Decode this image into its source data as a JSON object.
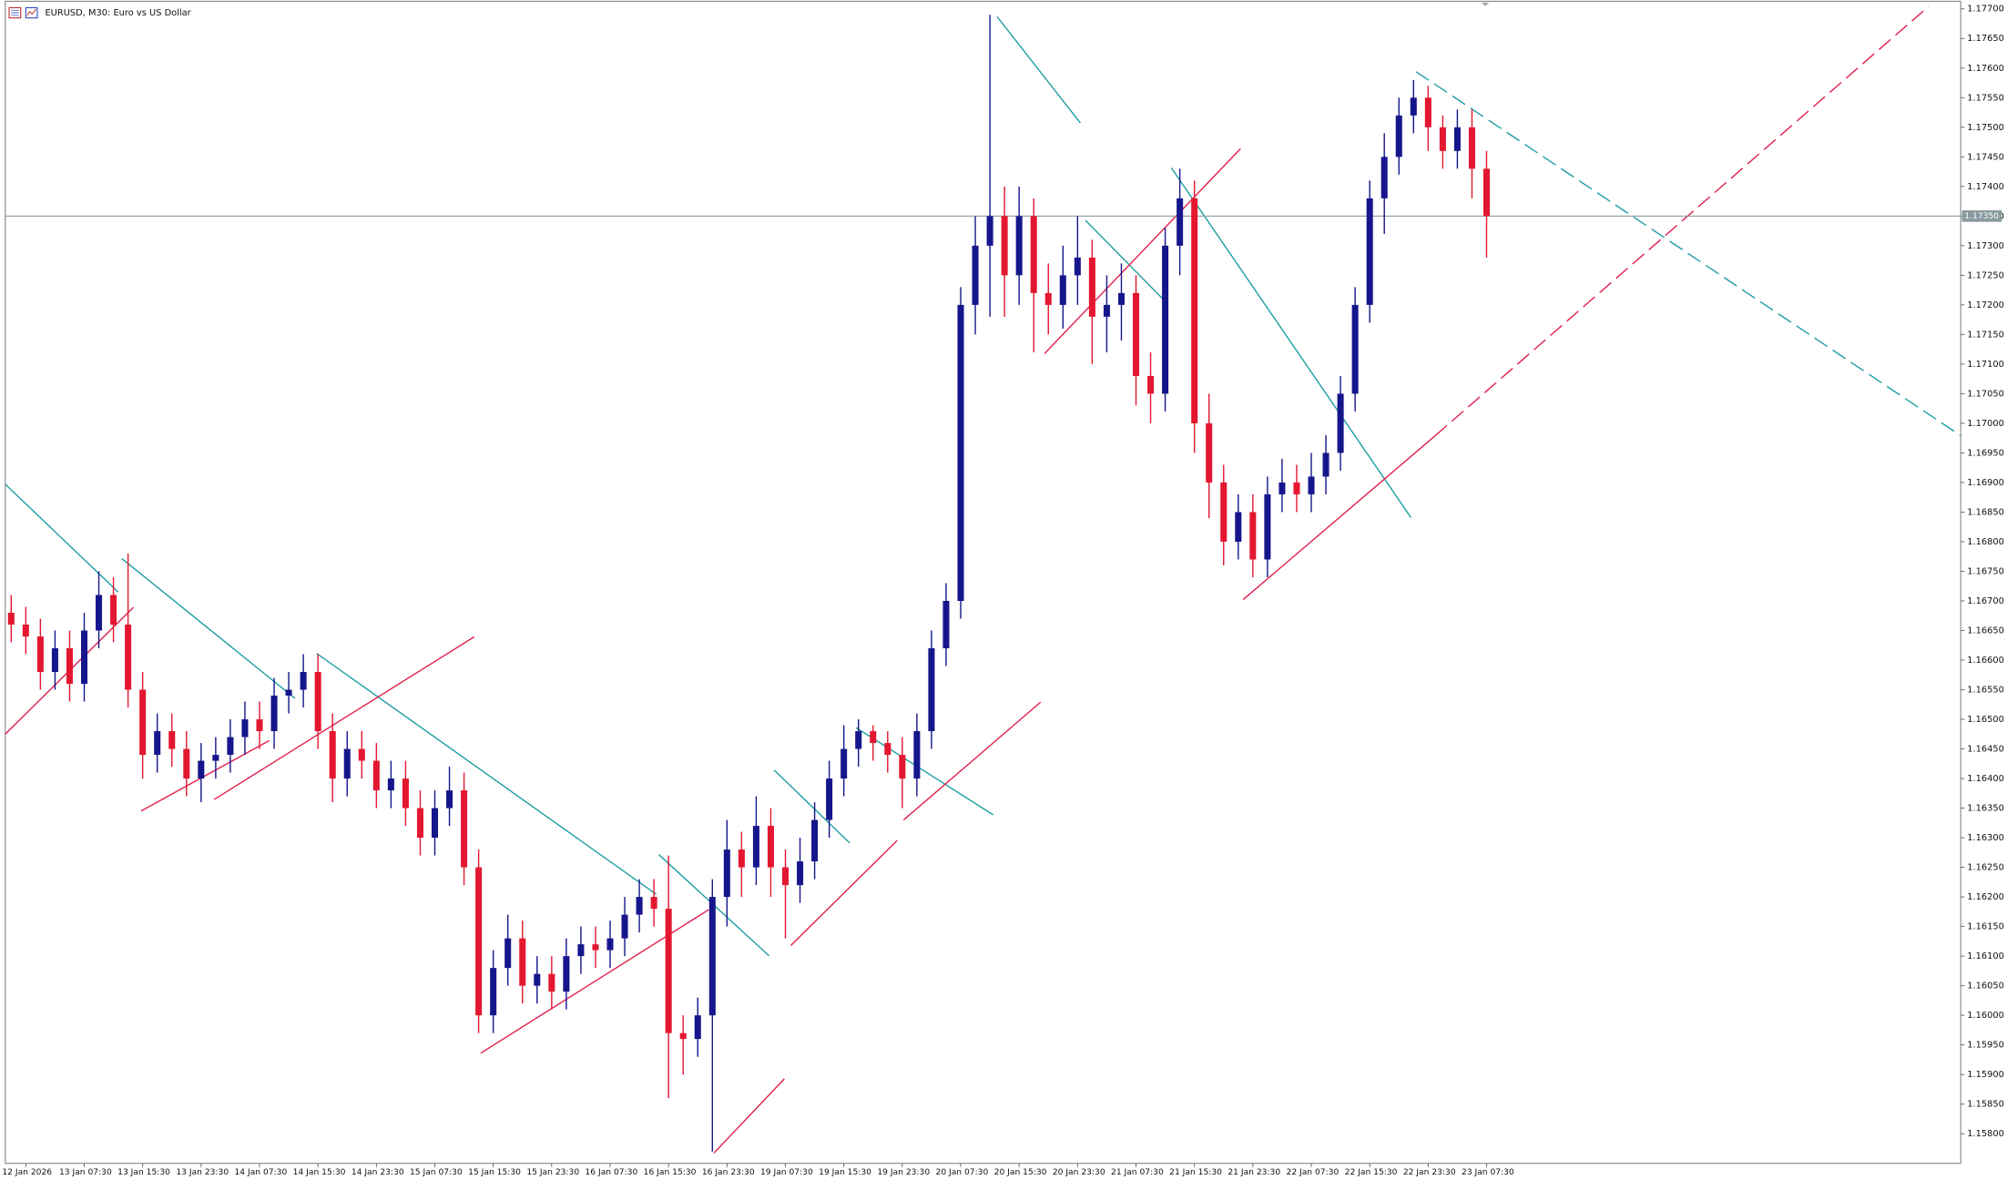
{
  "chart_data": {
    "type": "candlestick",
    "title": "EURUSD, M30:  Euro vs US Dollar",
    "categories": [
      null,
      "12 Jan 2026",
      null,
      null,
      null,
      "13 Jan 07:30",
      null,
      null,
      null,
      "13 Jan 15:30",
      null,
      null,
      null,
      "13 Jan 23:30",
      null,
      null,
      null,
      "14 Jan 07:30",
      null,
      null,
      null,
      "14 Jan 15:30",
      null,
      null,
      null,
      "14 Jan 23:30",
      null,
      null,
      null,
      "15 Jan 07:30",
      null,
      null,
      null,
      "15 Jan 15:30",
      null,
      null,
      null,
      "15 Jan 23:30",
      null,
      null,
      null,
      "16 Jan 07:30",
      null,
      null,
      null,
      "16 Jan 15:30",
      null,
      null,
      null,
      "16 Jan 23:30",
      null,
      null,
      null,
      "19 Jan 07:30",
      null,
      null,
      null,
      "19 Jan 15:30",
      null,
      null,
      null,
      "19 Jan 23:30",
      null,
      null,
      null,
      "20 Jan 07:30",
      null,
      null,
      null,
      "20 Jan 15:30",
      null,
      null,
      null,
      "20 Jan 23:30",
      null,
      null,
      null,
      "21 Jan 07:30",
      null,
      null,
      null,
      "21 Jan 15:30",
      null,
      null,
      null,
      "21 Jan 23:30",
      null,
      null,
      null,
      "22 Jan 07:30",
      null,
      null,
      null,
      "22 Jan 15:30",
      null,
      null,
      null,
      "22 Jan 23:30",
      null,
      null,
      null,
      "23 Jan 07:30"
    ],
    "open": [
      1.1668,
      1.1666,
      1.1664,
      1.1658,
      1.1662,
      1.1656,
      1.1665,
      1.1671,
      1.1666,
      1.1655,
      1.1644,
      1.1648,
      1.1645,
      1.164,
      1.1643,
      1.1644,
      1.1647,
      1.165,
      1.1648,
      1.1654,
      1.1655,
      1.1658,
      1.1648,
      1.164,
      1.1645,
      1.1643,
      1.1638,
      1.164,
      1.1635,
      1.163,
      1.1635,
      1.1638,
      1.1625,
      1.16,
      1.1608,
      1.1613,
      1.1605,
      1.1607,
      1.1604,
      1.161,
      1.1612,
      1.1611,
      1.1613,
      1.1617,
      1.162,
      1.1618,
      1.1597,
      1.1596,
      1.16,
      1.162,
      1.1628,
      1.1625,
      1.1632,
      1.1625,
      1.1622,
      1.1626,
      1.1633,
      1.164,
      1.1645,
      1.1648,
      1.1646,
      1.1644,
      1.164,
      1.1648,
      1.1662,
      1.167,
      1.172,
      1.173,
      1.1735,
      1.1725,
      1.1735,
      1.1722,
      1.172,
      1.1725,
      1.1728,
      1.1718,
      1.172,
      1.1722,
      1.1708,
      1.1705,
      1.173,
      1.1738,
      1.17,
      1.169,
      1.168,
      1.1685,
      1.1677,
      1.1688,
      1.169,
      1.1688,
      1.1691,
      1.1695,
      1.1705,
      1.172,
      1.1738,
      1.1745,
      1.1752,
      1.1755,
      1.175,
      1.1746,
      1.175,
      1.1743
    ],
    "high": [
      1.1671,
      1.1669,
      1.1667,
      1.1665,
      1.1665,
      1.1668,
      1.1675,
      1.1674,
      1.1678,
      1.1658,
      1.1651,
      1.1651,
      1.1648,
      1.1646,
      1.1647,
      1.165,
      1.1653,
      1.1653,
      1.1657,
      1.1658,
      1.1661,
      1.1661,
      1.1651,
      1.1648,
      1.1648,
      1.1646,
      1.1643,
      1.1643,
      1.1638,
      1.1638,
      1.1642,
      1.1641,
      1.1628,
      1.1611,
      1.1617,
      1.1616,
      1.161,
      1.161,
      1.1613,
      1.1615,
      1.1615,
      1.1616,
      1.162,
      1.1623,
      1.1623,
      1.1627,
      1.16,
      1.1603,
      1.1623,
      1.1633,
      1.1631,
      1.1637,
      1.1635,
      1.1628,
      1.163,
      1.1636,
      1.1643,
      1.1649,
      1.165,
      1.1649,
      1.1648,
      1.1647,
      1.1651,
      1.1665,
      1.1673,
      1.1723,
      1.1735,
      1.1769,
      1.174,
      1.174,
      1.1738,
      1.1727,
      1.173,
      1.1735,
      1.1731,
      1.1725,
      1.1727,
      1.1725,
      1.1712,
      1.1733,
      1.1743,
      1.1741,
      1.1705,
      1.1693,
      1.1688,
      1.1688,
      1.1691,
      1.1694,
      1.1693,
      1.1695,
      1.1698,
      1.1708,
      1.1723,
      1.1741,
      1.1749,
      1.1755,
      1.1758,
      1.1757,
      1.1752,
      1.1753,
      1.1753,
      1.1746
    ],
    "low": [
      1.1663,
      1.1661,
      1.1655,
      1.1655,
      1.1653,
      1.1653,
      1.1662,
      1.1663,
      1.1652,
      1.164,
      1.1641,
      1.1642,
      1.1637,
      1.1636,
      1.164,
      1.1641,
      1.1644,
      1.1645,
      1.1645,
      1.1651,
      1.1652,
      1.1645,
      1.1636,
      1.1637,
      1.164,
      1.1635,
      1.1635,
      1.1632,
      1.1627,
      1.1627,
      1.1632,
      1.1622,
      1.1597,
      1.1597,
      1.1605,
      1.1602,
      1.1602,
      1.1601,
      1.1601,
      1.1607,
      1.1608,
      1.1608,
      1.161,
      1.1614,
      1.1615,
      1.1586,
      1.159,
      1.1593,
      1.1577,
      1.1615,
      1.162,
      1.1622,
      1.162,
      1.1613,
      1.1619,
      1.1623,
      1.163,
      1.1637,
      1.1642,
      1.1643,
      1.1641,
      1.1635,
      1.1637,
      1.1645,
      1.1659,
      1.1667,
      1.1715,
      1.1718,
      1.1718,
      1.172,
      1.1712,
      1.1715,
      1.1716,
      1.172,
      1.171,
      1.1712,
      1.1714,
      1.1703,
      1.17,
      1.1702,
      1.1725,
      1.1695,
      1.1684,
      1.1676,
      1.1677,
      1.1674,
      1.1674,
      1.1685,
      1.1685,
      1.1685,
      1.1688,
      1.1692,
      1.1702,
      1.1717,
      1.1732,
      1.1742,
      1.1749,
      1.1746,
      1.1743,
      1.1743,
      1.1738,
      1.1728
    ],
    "close": [
      1.1666,
      1.1664,
      1.1658,
      1.1662,
      1.1656,
      1.1665,
      1.1671,
      1.1666,
      1.1655,
      1.1644,
      1.1648,
      1.1645,
      1.164,
      1.1643,
      1.1644,
      1.1647,
      1.165,
      1.1648,
      1.1654,
      1.1655,
      1.1658,
      1.1648,
      1.164,
      1.1645,
      1.1643,
      1.1638,
      1.164,
      1.1635,
      1.163,
      1.1635,
      1.1638,
      1.1625,
      1.16,
      1.1608,
      1.1613,
      1.1605,
      1.1607,
      1.1604,
      1.161,
      1.1612,
      1.1611,
      1.1613,
      1.1617,
      1.162,
      1.1618,
      1.1597,
      1.1596,
      1.16,
      1.162,
      1.1628,
      1.1625,
      1.1632,
      1.1625,
      1.1622,
      1.1626,
      1.1633,
      1.164,
      1.1645,
      1.1648,
      1.1646,
      1.1644,
      1.164,
      1.1648,
      1.1662,
      1.167,
      1.172,
      1.173,
      1.1735,
      1.1725,
      1.1735,
      1.1722,
      1.172,
      1.1725,
      1.1728,
      1.1718,
      1.172,
      1.1722,
      1.1708,
      1.1705,
      1.173,
      1.1738,
      1.17,
      1.169,
      1.168,
      1.1685,
      1.1677,
      1.1688,
      1.169,
      1.1688,
      1.1691,
      1.1695,
      1.1705,
      1.172,
      1.1738,
      1.1745,
      1.1752,
      1.1755,
      1.175,
      1.1746,
      1.175,
      1.1743,
      1.1735
    ],
    "up_color": "#16168c",
    "down_color": "#e3172f",
    "ylim": [
      1.1575,
      1.17715
    ],
    "yticks": [
      {
        "value": 1.158,
        "label": "1.15800"
      },
      {
        "value": 1.1585,
        "label": "1.15850"
      },
      {
        "value": 1.159,
        "label": "1.15900"
      },
      {
        "value": 1.1595,
        "label": "1.15950"
      },
      {
        "value": 1.16,
        "label": "1.16000"
      },
      {
        "value": 1.1605,
        "label": "1.16050"
      },
      {
        "value": 1.161,
        "label": "1.16100"
      },
      {
        "value": 1.1615,
        "label": "1.16150"
      },
      {
        "value": 1.162,
        "label": "1.16200"
      },
      {
        "value": 1.1625,
        "label": "1.16250"
      },
      {
        "value": 1.163,
        "label": "1.16300"
      },
      {
        "value": 1.1635,
        "label": "1.16350"
      },
      {
        "value": 1.164,
        "label": "1.16400"
      },
      {
        "value": 1.1645,
        "label": "1.16450"
      },
      {
        "value": 1.165,
        "label": "1.16500"
      },
      {
        "value": 1.1655,
        "label": "1.16550"
      },
      {
        "value": 1.166,
        "label": "1.16600"
      },
      {
        "value": 1.1665,
        "label": "1.16650"
      },
      {
        "value": 1.167,
        "label": "1.16700"
      },
      {
        "value": 1.1675,
        "label": "1.16750"
      },
      {
        "value": 1.168,
        "label": "1.16800"
      },
      {
        "value": 1.1685,
        "label": "1.16850"
      },
      {
        "value": 1.169,
        "label": "1.16900"
      },
      {
        "value": 1.1695,
        "label": "1.16950"
      },
      {
        "value": 1.17,
        "label": "1.17000"
      },
      {
        "value": 1.1705,
        "label": "1.17050"
      },
      {
        "value": 1.171,
        "label": "1.17100"
      },
      {
        "value": 1.1715,
        "label": "1.17150"
      },
      {
        "value": 1.172,
        "label": "1.17200"
      },
      {
        "value": 1.1725,
        "label": "1.17250"
      },
      {
        "value": 1.173,
        "label": "1.17300"
      },
      {
        "value": 1.1735,
        "label": "1.17350"
      },
      {
        "value": 1.174,
        "label": "1.17400"
      },
      {
        "value": 1.1745,
        "label": "1.17450"
      },
      {
        "value": 1.175,
        "label": "1.17500"
      },
      {
        "value": 1.1755,
        "label": "1.17550"
      },
      {
        "value": 1.176,
        "label": "1.17600"
      },
      {
        "value": 1.1765,
        "label": "1.17650"
      },
      {
        "value": 1.177,
        "label": "1.17700"
      }
    ],
    "price_line": {
      "value": 1.1735,
      "label": "1.17350"
    },
    "grid": false
  }
}
